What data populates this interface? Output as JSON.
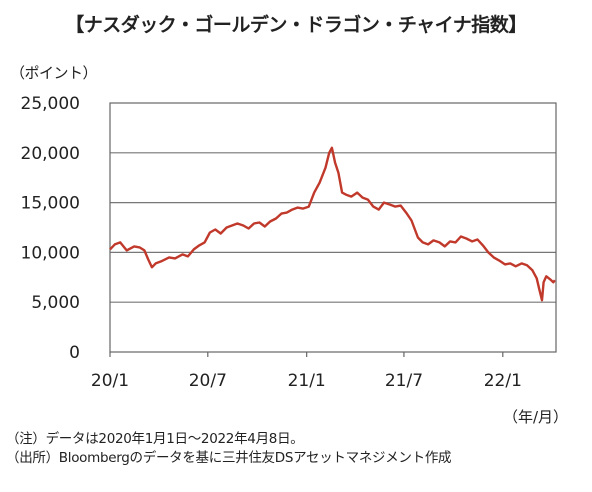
{
  "chart_data": {
    "type": "line",
    "title": "【ナスダック・ゴールデン・ドラゴン・チャイナ指数】",
    "ylabel": "（ポイント）",
    "xlabel": "（年/月）",
    "ylim": [
      0,
      25000
    ],
    "yticks": [
      "25,000",
      "20,000",
      "15,000",
      "10,000",
      "5,000",
      "0"
    ],
    "xticks": [
      "20/1",
      "20/7",
      "21/1",
      "21/7",
      "22/1"
    ],
    "grid": true,
    "colors": {
      "line": "#c0392b",
      "frame": "#666666",
      "grid": "#777777"
    },
    "series": [
      {
        "values": [
          [
            "2020-01-01",
            10300
          ],
          [
            "2020-01-10",
            10800
          ],
          [
            "2020-01-20",
            11000
          ],
          [
            "2020-02-01",
            10200
          ],
          [
            "2020-02-15",
            10600
          ],
          [
            "2020-02-25",
            10500
          ],
          [
            "2020-03-05",
            10200
          ],
          [
            "2020-03-12",
            9300
          ],
          [
            "2020-03-19",
            8500
          ],
          [
            "2020-03-26",
            8900
          ],
          [
            "2020-04-05",
            9100
          ],
          [
            "2020-04-20",
            9500
          ],
          [
            "2020-05-01",
            9400
          ],
          [
            "2020-05-15",
            9800
          ],
          [
            "2020-05-25",
            9600
          ],
          [
            "2020-06-05",
            10300
          ],
          [
            "2020-06-15",
            10700
          ],
          [
            "2020-06-25",
            11000
          ],
          [
            "2020-07-05",
            12000
          ],
          [
            "2020-07-15",
            12300
          ],
          [
            "2020-07-25",
            11900
          ],
          [
            "2020-08-05",
            12500
          ],
          [
            "2020-08-15",
            12700
          ],
          [
            "2020-08-25",
            12900
          ],
          [
            "2020-09-05",
            12700
          ],
          [
            "2020-09-15",
            12400
          ],
          [
            "2020-09-25",
            12900
          ],
          [
            "2020-10-05",
            13000
          ],
          [
            "2020-10-15",
            12600
          ],
          [
            "2020-10-25",
            13100
          ],
          [
            "2020-11-05",
            13400
          ],
          [
            "2020-11-15",
            13900
          ],
          [
            "2020-11-25",
            14000
          ],
          [
            "2020-12-05",
            14300
          ],
          [
            "2020-12-15",
            14500
          ],
          [
            "2020-12-25",
            14400
          ],
          [
            "2021-01-05",
            14600
          ],
          [
            "2021-01-15",
            16000
          ],
          [
            "2021-01-25",
            17000
          ],
          [
            "2021-02-05",
            18500
          ],
          [
            "2021-02-12",
            20000
          ],
          [
            "2021-02-17",
            20500
          ],
          [
            "2021-02-23",
            19000
          ],
          [
            "2021-03-01",
            18000
          ],
          [
            "2021-03-08",
            16000
          ],
          [
            "2021-03-15",
            15800
          ],
          [
            "2021-03-25",
            15600
          ],
          [
            "2021-04-05",
            16000
          ],
          [
            "2021-04-15",
            15500
          ],
          [
            "2021-04-25",
            15300
          ],
          [
            "2021-05-05",
            14600
          ],
          [
            "2021-05-15",
            14300
          ],
          [
            "2021-05-25",
            15000
          ],
          [
            "2021-06-05",
            14800
          ],
          [
            "2021-06-15",
            14600
          ],
          [
            "2021-06-25",
            14700
          ],
          [
            "2021-07-05",
            14000
          ],
          [
            "2021-07-15",
            13200
          ],
          [
            "2021-07-27",
            11500
          ],
          [
            "2021-08-05",
            11000
          ],
          [
            "2021-08-15",
            10800
          ],
          [
            "2021-08-25",
            11200
          ],
          [
            "2021-09-05",
            11000
          ],
          [
            "2021-09-15",
            10600
          ],
          [
            "2021-09-25",
            11100
          ],
          [
            "2021-10-05",
            11000
          ],
          [
            "2021-10-15",
            11600
          ],
          [
            "2021-10-25",
            11400
          ],
          [
            "2021-11-05",
            11100
          ],
          [
            "2021-11-15",
            11300
          ],
          [
            "2021-11-25",
            10700
          ],
          [
            "2021-12-05",
            10000
          ],
          [
            "2021-12-15",
            9500
          ],
          [
            "2021-12-25",
            9200
          ],
          [
            "2022-01-05",
            8800
          ],
          [
            "2022-01-15",
            8900
          ],
          [
            "2022-01-25",
            8600
          ],
          [
            "2022-02-05",
            8900
          ],
          [
            "2022-02-15",
            8700
          ],
          [
            "2022-02-25",
            8200
          ],
          [
            "2022-03-05",
            7400
          ],
          [
            "2022-03-10",
            6300
          ],
          [
            "2022-03-15",
            5200
          ],
          [
            "2022-03-18",
            7000
          ],
          [
            "2022-03-23",
            7600
          ],
          [
            "2022-03-30",
            7300
          ],
          [
            "2022-04-05",
            7000
          ],
          [
            "2022-04-08",
            7200
          ]
        ]
      }
    ]
  },
  "notes": {
    "line1": "（注）データは2020年1月1日～2022年4月8日。",
    "line2": "（出所）Bloombergのデータを基に三井住友DSアセットマネジメント作成"
  }
}
